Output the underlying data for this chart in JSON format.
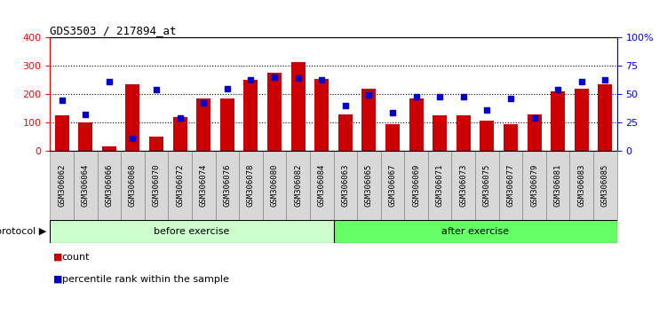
{
  "title": "GDS3503 / 217894_at",
  "categories": [
    "GSM306062",
    "GSM306064",
    "GSM306066",
    "GSM306068",
    "GSM306070",
    "GSM306072",
    "GSM306074",
    "GSM306076",
    "GSM306078",
    "GSM306080",
    "GSM306082",
    "GSM306084",
    "GSM306063",
    "GSM306065",
    "GSM306067",
    "GSM306069",
    "GSM306071",
    "GSM306073",
    "GSM306075",
    "GSM306077",
    "GSM306079",
    "GSM306081",
    "GSM306083",
    "GSM306085"
  ],
  "counts": [
    125,
    100,
    15,
    235,
    50,
    120,
    185,
    185,
    250,
    275,
    315,
    255,
    130,
    220,
    95,
    185,
    125,
    125,
    105,
    95,
    130,
    210,
    220,
    235
  ],
  "percentiles": [
    45,
    32,
    61,
    11,
    54,
    29,
    42,
    55,
    63,
    65,
    64,
    63,
    40,
    49,
    34,
    48,
    48,
    48,
    36,
    46,
    29,
    54,
    61,
    63
  ],
  "bar_color": "#CC0000",
  "dot_color": "#0000CC",
  "before_count": 12,
  "after_count": 12,
  "before_label": "before exercise",
  "after_label": "after exercise",
  "before_color": "#CCFFCC",
  "after_color": "#66FF66",
  "protocol_label": "protocol",
  "ylim_left": [
    0,
    400
  ],
  "ylim_right": [
    0,
    100
  ],
  "yticks_left": [
    0,
    100,
    200,
    300,
    400
  ],
  "yticks_right": [
    0,
    25,
    50,
    75,
    100
  ],
  "ytick_labels_right": [
    "0",
    "25",
    "50",
    "75",
    "100%"
  ],
  "legend_count_label": "count",
  "legend_pct_label": "percentile rank within the sample",
  "label_box_color": "#D8D8D8",
  "label_box_edge": "#888888"
}
